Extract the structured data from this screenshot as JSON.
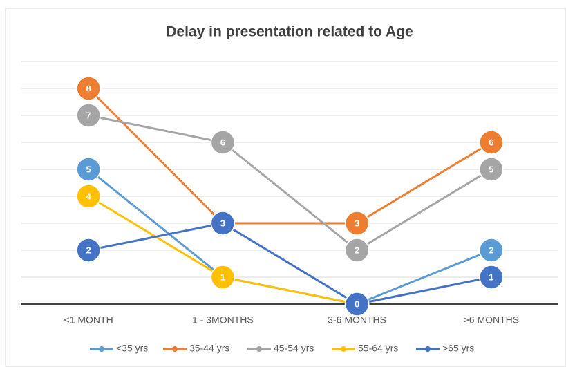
{
  "chart_data": {
    "type": "line",
    "title": "Delay in presentation related to Age",
    "categories": [
      "<1 MONTH",
      "1 - 3MONTHS",
      "3-6 MONTHS",
      ">6 MONTHS"
    ],
    "series": [
      {
        "name": "<35 yrs",
        "color": "#5b9bd5",
        "values": [
          5,
          1,
          0,
          2
        ]
      },
      {
        "name": "35-44 yrs",
        "color": "#ed7d31",
        "values": [
          8,
          3,
          3,
          6
        ]
      },
      {
        "name": "45-54 yrs",
        "color": "#a5a5a5",
        "values": [
          7,
          6,
          2,
          5
        ]
      },
      {
        "name": "55-64 yrs",
        "color": "#ffc000",
        "values": [
          4,
          1,
          0,
          null
        ]
      },
      {
        "name": ">65 yrs",
        "color": "#4472c4",
        "values": [
          2,
          3,
          0,
          1
        ]
      }
    ],
    "ylim": [
      0,
      9
    ],
    "yticks": [
      0,
      1,
      2,
      3,
      4,
      5,
      6,
      7,
      8,
      9
    ],
    "grid": true,
    "legend": "bottom"
  }
}
